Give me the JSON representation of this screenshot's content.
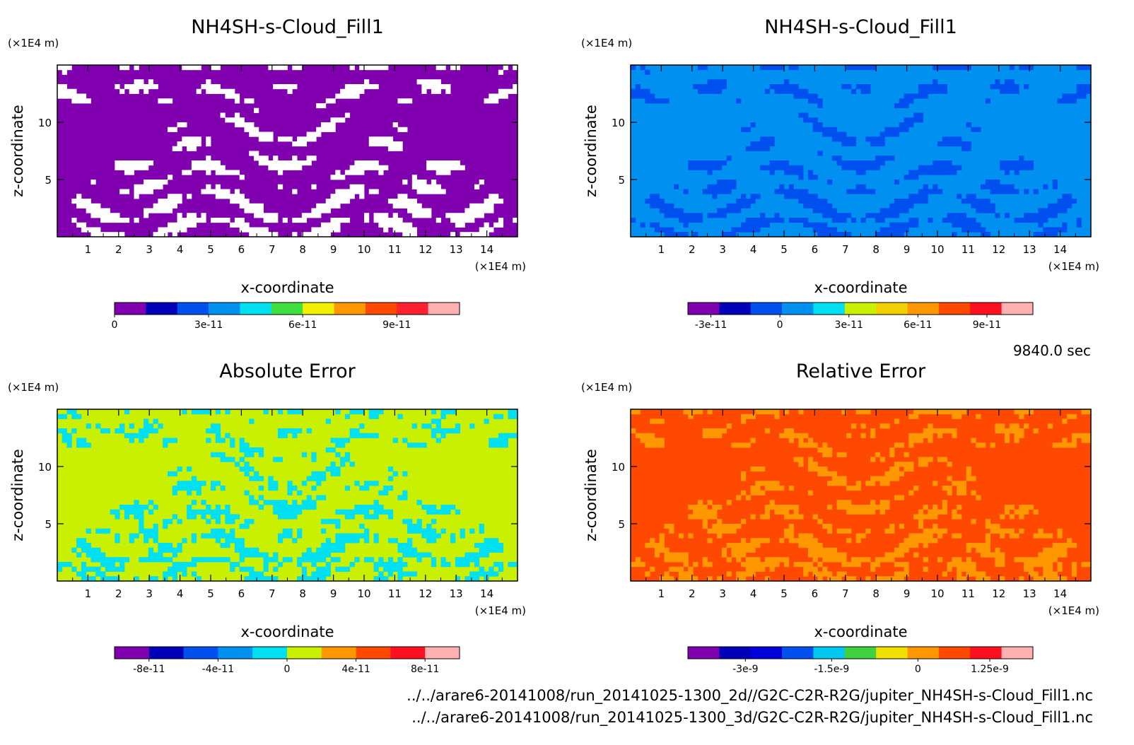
{
  "timestamp": "9840.0 sec",
  "file_paths": [
    "../../arare6-20141008/run_20141025-1300_2d//G2C-C2R-R2G/jupiter_NH4SH-s-Cloud_Fill1.nc",
    "../../arare6-20141008/run_20141025-1300_3d/G2C-C2R-R2G/jupiter_NH4SH-s-Cloud_Fill1.nc"
  ],
  "chart_data": [
    {
      "type": "heatmap",
      "title": "NH4SH-s-Cloud_Fill1",
      "xlabel": "x-coordinate",
      "ylabel": "z-coordinate",
      "x_unit": "(×1E4 m)",
      "y_unit": "(×1E4 m)",
      "xlim": [
        0,
        15
      ],
      "ylim": [
        0,
        15
      ],
      "x_ticks": [
        1,
        2,
        3,
        4,
        5,
        6,
        7,
        8,
        9,
        10,
        11,
        12,
        13,
        14
      ],
      "y_ticks": [
        5,
        10
      ],
      "background_color": "#8000b0",
      "pattern_color": "#ffffff",
      "colorbar": {
        "colors": [
          "#8000b0",
          "#0000b8",
          "#0050f0",
          "#0090f0",
          "#00e0f0",
          "#40e040",
          "#f0f000",
          "#ff9800",
          "#ff4800",
          "#ff2030",
          "#ffb0b0"
        ],
        "range": [
          0,
          1.1e-10
        ],
        "ticks": [
          {
            "value": 0,
            "label": "0"
          },
          {
            "value": 3e-11,
            "label": "3e-11"
          },
          {
            "value": 6e-11,
            "label": "6e-11"
          },
          {
            "value": 9e-11,
            "label": "9e-11"
          }
        ]
      }
    },
    {
      "type": "heatmap",
      "title": "NH4SH-s-Cloud_Fill1",
      "xlabel": "x-coordinate",
      "ylabel": "z-coordinate",
      "x_unit": "(×1E4 m)",
      "y_unit": "(×1E4 m)",
      "xlim": [
        0,
        15
      ],
      "ylim": [
        0,
        15
      ],
      "x_ticks": [
        1,
        2,
        3,
        4,
        5,
        6,
        7,
        8,
        9,
        10,
        11,
        12,
        13,
        14
      ],
      "y_ticks": [
        5,
        10
      ],
      "background_color": "#0090f0",
      "pattern_color": "#0050f0",
      "colorbar": {
        "colors": [
          "#8000b0",
          "#0000b8",
          "#0050f0",
          "#0090f0",
          "#00e0f0",
          "#c8f000",
          "#f0d000",
          "#ff9800",
          "#ff4800",
          "#ff1020",
          "#ffb0b0"
        ],
        "range": [
          -4e-11,
          1.1e-10
        ],
        "ticks": [
          {
            "value": -3e-11,
            "label": "-3e-11"
          },
          {
            "value": 0,
            "label": "0"
          },
          {
            "value": 3e-11,
            "label": "3e-11"
          },
          {
            "value": 6e-11,
            "label": "6e-11"
          },
          {
            "value": 9e-11,
            "label": "9e-11"
          }
        ]
      }
    },
    {
      "type": "heatmap",
      "title": "Absolute Error",
      "xlabel": "x-coordinate",
      "ylabel": "z-coordinate",
      "x_unit": "(×1E4 m)",
      "y_unit": "(×1E4 m)",
      "xlim": [
        0,
        15
      ],
      "ylim": [
        0,
        15
      ],
      "x_ticks": [
        1,
        2,
        3,
        4,
        5,
        6,
        7,
        8,
        9,
        10,
        11,
        12,
        13,
        14
      ],
      "y_ticks": [
        5,
        10
      ],
      "background_color": "#c8f000",
      "pattern_color": "#00e0f0",
      "colorbar": {
        "colors": [
          "#8000b0",
          "#0000b8",
          "#0050f0",
          "#0090f0",
          "#00e0f0",
          "#c8f000",
          "#ff9800",
          "#ff4800",
          "#ff1020",
          "#ffb0b0"
        ],
        "range": [
          -1e-10,
          1e-10
        ],
        "ticks": [
          {
            "value": -8e-11,
            "label": "-8e-11"
          },
          {
            "value": -4e-11,
            "label": "-4e-11"
          },
          {
            "value": 0,
            "label": "0"
          },
          {
            "value": 4e-11,
            "label": "4e-11"
          },
          {
            "value": 8e-11,
            "label": "8e-11"
          }
        ]
      }
    },
    {
      "type": "heatmap",
      "title": "Relative Error",
      "xlabel": "x-coordinate",
      "ylabel": "z-coordinate",
      "x_unit": "(×1E4 m)",
      "y_unit": "(×1E4 m)",
      "xlim": [
        0,
        15
      ],
      "ylim": [
        0,
        15
      ],
      "x_ticks": [
        1,
        2,
        3,
        4,
        5,
        6,
        7,
        8,
        9,
        10,
        11,
        12,
        13,
        14
      ],
      "y_ticks": [
        5,
        10
      ],
      "background_color": "#ff4800",
      "pattern_color": "#ff9800",
      "colorbar": {
        "colors": [
          "#8000b0",
          "#0000b8",
          "#0000d8",
          "#0050f0",
          "#00c8f0",
          "#40d040",
          "#f0e000",
          "#ff9800",
          "#ff4800",
          "#ff1020",
          "#ffb0b0"
        ],
        "range": [
          -4e-09,
          2e-09
        ],
        "ticks": [
          {
            "value": -3e-09,
            "label": "-3e-9"
          },
          {
            "value": -1.5e-09,
            "label": "-1.5e-9"
          },
          {
            "value": 0,
            "label": "0"
          },
          {
            "value": 1.25e-09,
            "label": "1.25e-9"
          }
        ]
      }
    }
  ]
}
